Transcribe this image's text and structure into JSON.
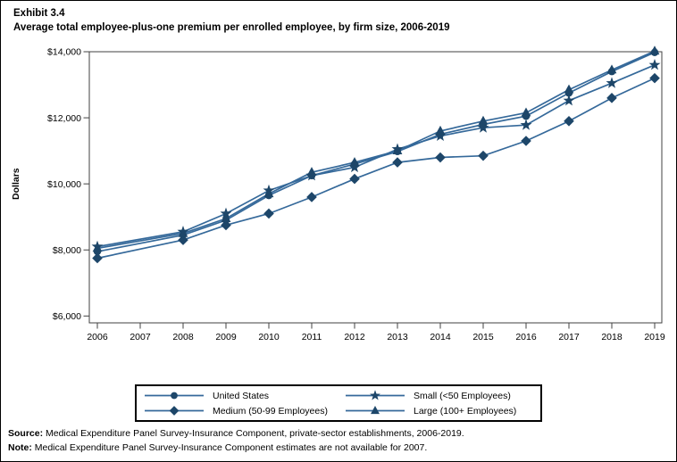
{
  "header": {
    "exhibit_label": "Exhibit 3.4",
    "title": "Average total employee-plus-one premium per enrolled employee, by firm size, 2006-2019"
  },
  "chart_data": {
    "type": "line",
    "title": "Average total employee-plus-one premium per enrolled employee, by firm size, 2006-2019",
    "xlabel": "",
    "ylabel": "Dollars",
    "x": [
      2006,
      2007,
      2008,
      2009,
      2010,
      2011,
      2012,
      2013,
      2014,
      2015,
      2016,
      2017,
      2018,
      2019
    ],
    "missing_years": [
      2007
    ],
    "series": [
      {
        "name": "United States",
        "marker": "circle",
        "values": [
          7950,
          null,
          8450,
          8900,
          9650,
          10250,
          10600,
          10980,
          11500,
          11800,
          12050,
          12750,
          13400,
          13980
        ]
      },
      {
        "name": "Medium (50-99 Employees)",
        "marker": "diamond",
        "values": [
          7750,
          null,
          8300,
          8750,
          9100,
          9600,
          10150,
          10650,
          10800,
          10850,
          11300,
          11900,
          12600,
          13200
        ]
      },
      {
        "name": "Small (<50 Employees)",
        "marker": "star",
        "values": [
          8100,
          null,
          8550,
          9100,
          9800,
          10250,
          10500,
          11050,
          11450,
          11700,
          11780,
          12520,
          13050,
          13600
        ]
      },
      {
        "name": "Large (100+ Employees)",
        "marker": "triangle",
        "values": [
          8050,
          null,
          8500,
          8950,
          9700,
          10350,
          10650,
          11000,
          11600,
          11900,
          12150,
          12850,
          13450,
          14020
        ]
      }
    ],
    "ylim": [
      6000,
      14000
    ],
    "ytick_step": 2000,
    "yticks": [
      6000,
      8000,
      10000,
      12000,
      14000
    ],
    "ytick_labels": [
      "$6,000",
      "$8,000",
      "$10,000",
      "$12,000",
      "$14,000"
    ],
    "grid": false,
    "legend_position": "bottom",
    "colors": {
      "line": "#35699a",
      "marker": "#1d4669",
      "axis": "#404040",
      "text": "#000000"
    }
  },
  "legend": {
    "items": [
      {
        "label": "United States",
        "marker": "circle"
      },
      {
        "label": "Small (<50 Employees)",
        "marker": "star"
      },
      {
        "label": "Medium (50-99 Employees)",
        "marker": "diamond"
      },
      {
        "label": "Large (100+ Employees)",
        "marker": "triangle"
      }
    ]
  },
  "footer": {
    "source_label": "Source:",
    "source_text": " Medical Expenditure Panel Survey-Insurance Component, private-sector establishments, 2006-2019.",
    "note_label": "Note:",
    "note_text": " Medical Expenditure Panel Survey-Insurance Component estimates are not available for 2007."
  }
}
